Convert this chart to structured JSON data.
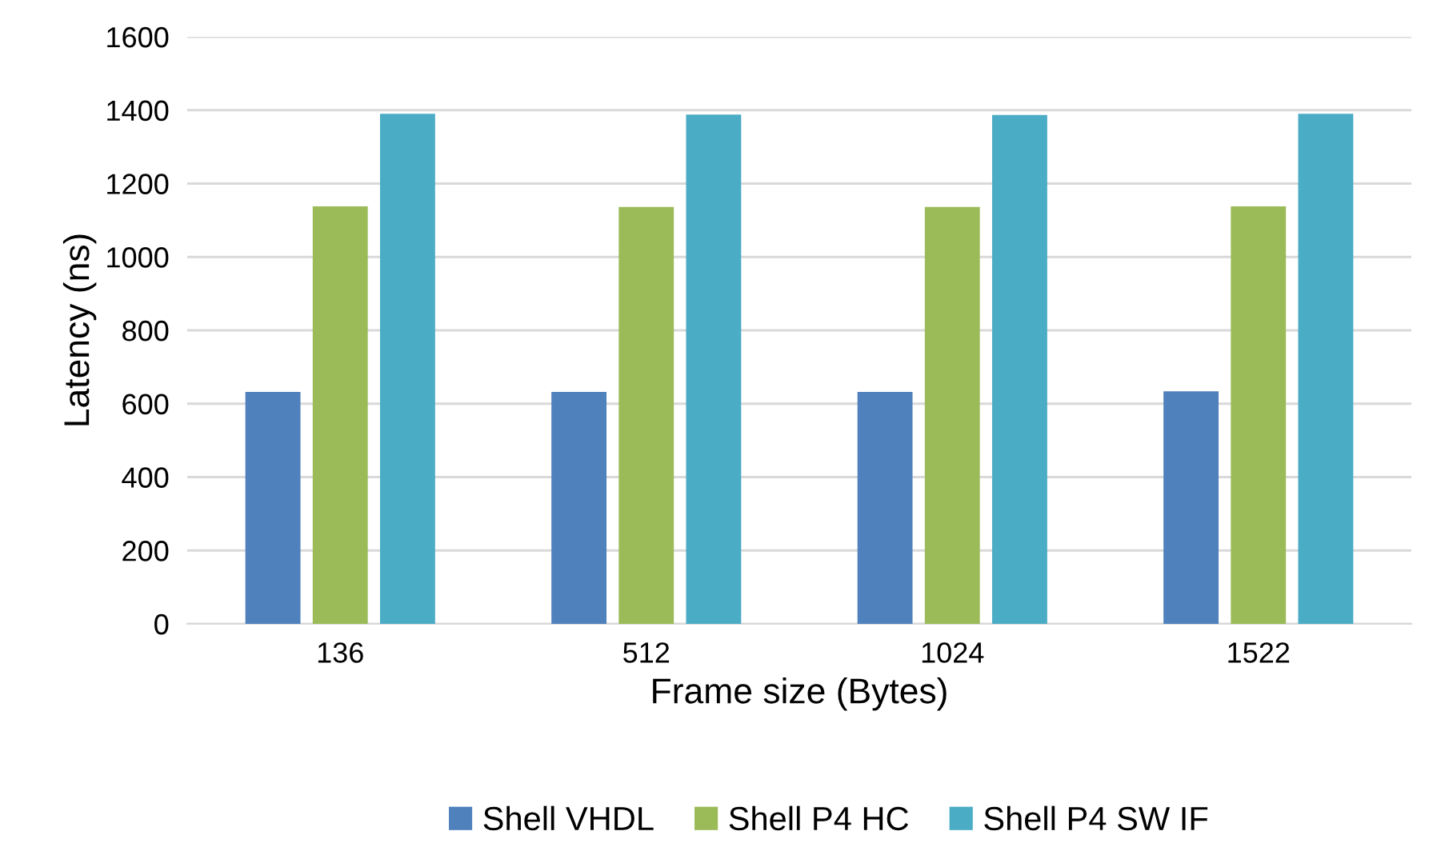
{
  "chart_data": {
    "type": "bar",
    "xlabel": "Frame size (Bytes)",
    "ylabel": "Latency (ns)",
    "categories": [
      "136",
      "512",
      "1024",
      "1522"
    ],
    "series": [
      {
        "name": "Shell VHDL",
        "color": "#4f81bd",
        "values": [
          632,
          632,
          632,
          634
        ]
      },
      {
        "name": "Shell P4 HC",
        "color": "#9bbb59",
        "values": [
          1138,
          1136,
          1136,
          1138
        ]
      },
      {
        "name": "Shell P4 SW IF",
        "color": "#4bacc6",
        "values": [
          1390,
          1388,
          1387,
          1390
        ]
      }
    ],
    "ylim": [
      0,
      1600
    ],
    "yticks": [
      0,
      200,
      400,
      600,
      800,
      1000,
      1200,
      1400,
      1600
    ],
    "grid": "y",
    "legend": "bottom"
  }
}
